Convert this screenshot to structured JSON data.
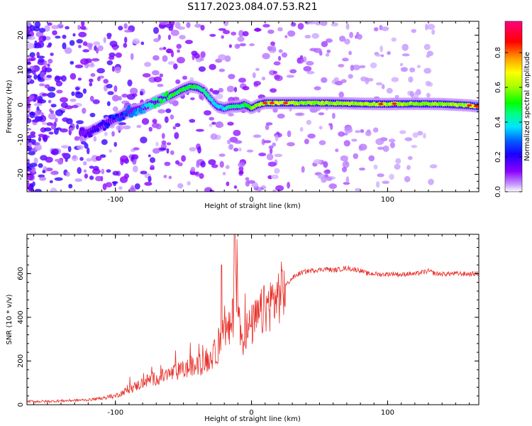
{
  "title": "S117.2023.084.07.53.R21",
  "chart_data": [
    {
      "type": "heatmap",
      "title": "S117.2023.084.07.53.R21",
      "xlabel": "Height of straight line (km)",
      "ylabel": "Frequency (Hz)",
      "xlim": [
        -165,
        167
      ],
      "ylim": [
        -25,
        24
      ],
      "xticks": [
        -100,
        0,
        100
      ],
      "yticks": [
        -20,
        -10,
        0,
        10,
        20
      ],
      "ridge": {
        "x": [
          -120,
          -110,
          -100,
          -90,
          -80,
          -70,
          -60,
          -50,
          -45,
          -40,
          -35,
          -30,
          -25,
          -20,
          -15,
          -10,
          -5,
          0,
          5,
          10,
          20,
          40,
          60,
          80,
          100,
          120,
          140,
          160,
          167
        ],
        "freq": [
          -8,
          -6,
          -4,
          -2,
          -1,
          1,
          2.5,
          4.5,
          5.3,
          5,
          4,
          1.5,
          -0.5,
          -1,
          -0.5,
          -0.5,
          0,
          -1,
          0,
          0.5,
          0.5,
          0.5,
          0.5,
          0.3,
          0.2,
          0.3,
          0.2,
          -0.2,
          -0.5
        ],
        "amplitude": [
          0.15,
          0.2,
          0.25,
          0.3,
          0.35,
          0.45,
          0.5,
          0.5,
          0.5,
          0.5,
          0.45,
          0.4,
          0.35,
          0.4,
          0.45,
          0.45,
          0.5,
          0.55,
          0.6,
          0.62,
          0.65,
          0.6,
          0.6,
          0.6,
          0.62,
          0.6,
          0.6,
          0.6,
          0.8
        ]
      },
      "colorbar": {
        "label": "Normalized spectral amplitude",
        "ticks": [
          0.0,
          0.2,
          0.4,
          0.6,
          0.8
        ],
        "range": [
          0,
          0.98
        ],
        "colormap": [
          "#ffffff",
          "#8b00ff",
          "#1a00ff",
          "#0060ff",
          "#00e5ff",
          "#00ff40",
          "#80ff00",
          "#ffff00",
          "#ff8000",
          "#ff0000",
          "#ff0080"
        ]
      }
    },
    {
      "type": "line",
      "xlabel": "Height of straight line (km)",
      "ylabel": "SNR (10 * v/v)",
      "xlim": [
        -165,
        167
      ],
      "ylim": [
        0,
        780
      ],
      "xticks": [
        -100,
        0,
        100
      ],
      "yticks": [
        0,
        200,
        400,
        600
      ],
      "color": "#e8302a",
      "series": [
        {
          "x": [
            -165,
            -150,
            -130,
            -120,
            -110,
            -100,
            -95,
            -90,
            -85,
            -80,
            -75,
            -70,
            -65,
            -60,
            -55,
            -50,
            -45,
            -40,
            -35,
            -30,
            -25,
            -22,
            -20,
            -18,
            -15,
            -13,
            -12,
            -10,
            -8,
            -5,
            0,
            5,
            10,
            15,
            20,
            25,
            30,
            35,
            40,
            45,
            50,
            55,
            60,
            65,
            70,
            75,
            80,
            85,
            90,
            95,
            100,
            105,
            110,
            115,
            120,
            125,
            130,
            135,
            140,
            150,
            160,
            167
          ],
          "y": [
            15,
            15,
            20,
            22,
            30,
            40,
            55,
            70,
            85,
            100,
            115,
            120,
            130,
            140,
            150,
            160,
            170,
            175,
            190,
            215,
            250,
            350,
            380,
            320,
            350,
            430,
            600,
            480,
            280,
            330,
            360,
            400,
            440,
            470,
            500,
            545,
            580,
            600,
            610,
            615,
            618,
            622,
            615,
            620,
            625,
            620,
            615,
            600,
            600,
            596,
            598,
            600,
            594,
            600,
            598,
            605,
            612,
            600,
            598,
            600,
            598,
            600
          ]
        }
      ]
    }
  ]
}
